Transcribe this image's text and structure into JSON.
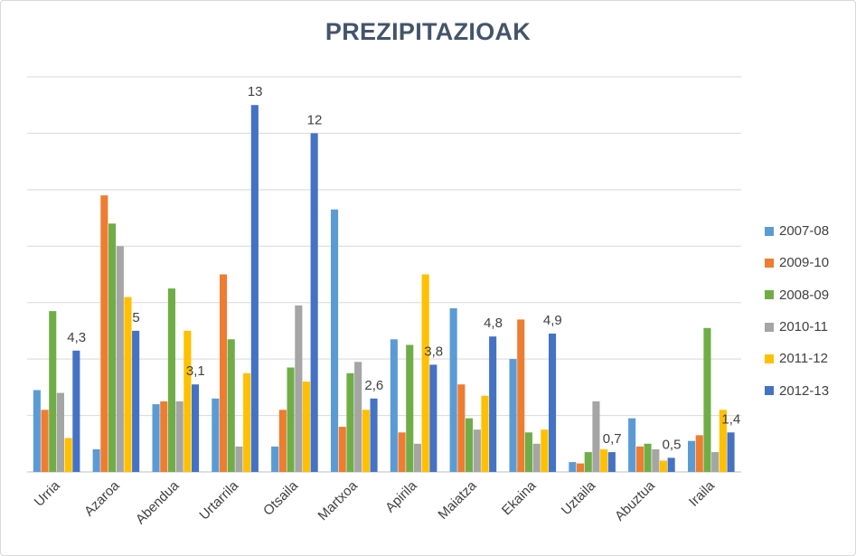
{
  "chart_data": {
    "type": "bar",
    "title": "PREZIPITAZIOAK",
    "categories": [
      "Urria",
      "Azaroa",
      "Abendua",
      "Urtarrila",
      "Otsaila",
      "Martxoa",
      "Apirila",
      "Maiatza",
      "Ekaina",
      "Uztaila",
      "Abuztua",
      "Iraila"
    ],
    "series": [
      {
        "name": "2007-08",
        "color": "#5b9bd5",
        "values": [
          2.9,
          0.8,
          2.4,
          2.6,
          0.9,
          9.3,
          4.7,
          5.8,
          4.0,
          0.35,
          1.9,
          1.1
        ]
      },
      {
        "name": "2009-10",
        "color": "#ed7d31",
        "values": [
          2.2,
          9.8,
          2.5,
          7.0,
          2.2,
          1.6,
          1.4,
          3.1,
          5.4,
          0.3,
          0.9,
          1.3
        ]
      },
      {
        "name": "2008-09",
        "color": "#70ad47",
        "values": [
          5.7,
          8.8,
          6.5,
          4.7,
          3.7,
          3.5,
          4.5,
          1.9,
          1.4,
          0.7,
          1.0,
          5.1
        ]
      },
      {
        "name": "2010-11",
        "color": "#a5a5a5",
        "values": [
          2.8,
          8.0,
          2.5,
          0.9,
          5.9,
          3.9,
          1.0,
          1.5,
          1.0,
          2.5,
          0.8,
          0.7
        ]
      },
      {
        "name": "2011-12",
        "color": "#ffc000",
        "values": [
          1.2,
          6.2,
          5.0,
          3.5,
          3.2,
          2.2,
          7.0,
          2.7,
          1.5,
          0.8,
          0.4,
          2.2
        ]
      },
      {
        "name": "2012-13",
        "color": "#4472c4",
        "values": [
          4.3,
          5.0,
          3.1,
          13,
          12,
          2.6,
          3.8,
          4.8,
          4.9,
          0.7,
          0.5,
          1.4
        ]
      }
    ],
    "data_labels": {
      "series": "2012-13",
      "texts": [
        "4,3",
        "5",
        "3,1",
        "13",
        "12",
        "2,6",
        "3,8",
        "4,8",
        "4,9",
        "0,7",
        "0,5",
        "1,4"
      ]
    },
    "ylim": [
      0,
      14
    ],
    "y_gridlines": 2,
    "grid": true,
    "legend": "right",
    "xlabel": "",
    "ylabel": ""
  }
}
